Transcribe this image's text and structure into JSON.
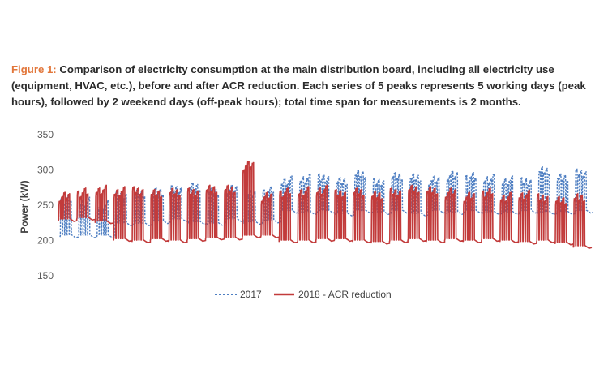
{
  "figure": {
    "label": "Figure 1:",
    "caption": " Comparison of electricity consumption at the main distribution board, including all electricity use (equipment, HVAC, etc.), before and after ACR reduction. Each series of 5 peaks represents 5 working days (peak hours), followed by 2 weekend days (off-peak hours); total time span for measurements is 2 months."
  },
  "colors": {
    "series_2017": "#4f7fc2",
    "series_2018": "#c23b3b",
    "grid": "#d9d9d9",
    "text": "#595959",
    "caption_label": "#e2763a"
  },
  "chart_data": {
    "type": "line",
    "title": "",
    "xlabel": "",
    "ylabel": "Power (kW)",
    "ylim": [
      150,
      350
    ],
    "yticks": [
      150,
      200,
      250,
      300,
      350
    ],
    "grid": false,
    "legend_position": "bottom",
    "series": [
      {
        "name": "2017",
        "line_style": "dashed",
        "color": "#4f7fc2",
        "base": [
          205,
          205,
          205,
          222,
          222,
          225,
          228,
          224,
          222,
          228,
          224,
          226,
          240,
          238,
          240,
          236,
          240,
          238,
          240,
          236,
          240,
          238,
          240,
          238,
          238,
          240,
          238,
          238,
          240
        ],
        "peaks": [
          258,
          255,
          250,
          265,
          268,
          270,
          272,
          275,
          268,
          272,
          265,
          270,
          285,
          288,
          290,
          285,
          295,
          282,
          290,
          288,
          285,
          292,
          290,
          288,
          285,
          285,
          300,
          290,
          295
        ]
      },
      {
        "name": "2018 - ACR reduction",
        "line_style": "solid",
        "color": "#c23b3b",
        "base": [
          228,
          230,
          225,
          200,
          198,
          200,
          198,
          200,
          202,
          202,
          205,
          205,
          198,
          198,
          200,
          200,
          198,
          196,
          198,
          200,
          198,
          200,
          198,
          200,
          198,
          196,
          198,
          195,
          190
        ],
        "peaks": [
          262,
          268,
          272,
          270,
          272,
          268,
          270,
          268,
          272,
          272,
          306,
          262,
          268,
          270,
          272,
          268,
          270,
          265,
          268,
          272,
          270,
          268,
          262,
          268,
          262,
          265,
          262,
          258,
          262
        ]
      }
    ]
  },
  "legend": {
    "item_2017": "2017",
    "item_2018": "2018 - ACR reduction"
  }
}
